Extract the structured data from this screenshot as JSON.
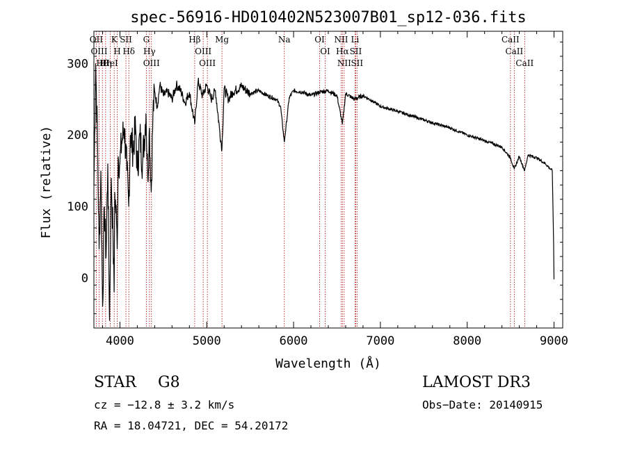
{
  "chart_data": {
    "type": "line",
    "title": "spec-56916-HD010402N523007B01_sp12-036.fits",
    "xlabel": "Wavelength (Å)",
    "ylabel": "Flux (relative)",
    "xlim": [
      3700,
      9100
    ],
    "ylim": [
      -70,
      345
    ],
    "xticks": [
      4000,
      5000,
      6000,
      7000,
      8000,
      9000
    ],
    "yticks": [
      0,
      100,
      200,
      300
    ],
    "xtick_labels": [
      "4000",
      "5000",
      "6000",
      "7000",
      "8000",
      "9000"
    ],
    "ytick_labels": [
      "0",
      "100",
      "200",
      "300"
    ],
    "grid": false,
    "series": [
      {
        "name": "spectrum",
        "x": [
          3700,
          3720,
          3740,
          3760,
          3780,
          3800,
          3820,
          3840,
          3860,
          3880,
          3900,
          3920,
          3933,
          3940,
          3960,
          3968,
          3980,
          4000,
          4020,
          4050,
          4080,
          4101,
          4120,
          4150,
          4180,
          4200,
          4230,
          4260,
          4300,
          4320,
          4340,
          4360,
          4380,
          4400,
          4430,
          4460,
          4500,
          4550,
          4600,
          4650,
          4700,
          4750,
          4800,
          4861,
          4900,
          4950,
          5000,
          5050,
          5100,
          5150,
          5175,
          5200,
          5250,
          5300,
          5400,
          5500,
          5600,
          5700,
          5800,
          5850,
          5893,
          5950,
          6000,
          6100,
          6200,
          6300,
          6400,
          6500,
          6563,
          6600,
          6700,
          6800,
          6900,
          7000,
          7200,
          7400,
          7600,
          7800,
          8000,
          8200,
          8400,
          8498,
          8542,
          8600,
          8662,
          8700,
          8800,
          8900,
          8980,
          8995,
          9000
        ],
        "y": [
          130,
          300,
          200,
          40,
          150,
          -40,
          100,
          30,
          160,
          -60,
          140,
          60,
          -20,
          120,
          80,
          40,
          170,
          160,
          190,
          210,
          150,
          100,
          200,
          180,
          210,
          150,
          200,
          160,
          230,
          140,
          210,
          120,
          230,
          260,
          240,
          270,
          255,
          260,
          250,
          270,
          262,
          245,
          260,
          215,
          275,
          255,
          270,
          250,
          262,
          205,
          180,
          265,
          250,
          260,
          268,
          258,
          262,
          255,
          250,
          240,
          190,
          252,
          262,
          260,
          255,
          260,
          262,
          255,
          215,
          258,
          250,
          255,
          248,
          240,
          233,
          225,
          217,
          210,
          200,
          192,
          183,
          168,
          152,
          170,
          150,
          172,
          168,
          160,
          150,
          50,
          -2
        ],
        "color": "#000000"
      }
    ],
    "lines": [
      {
        "label": "OII",
        "x": 3727
      },
      {
        "label": "OIII",
        "x": 3760
      },
      {
        "label": "Hθ",
        "x": 3798
      },
      {
        "label": "Hη",
        "x": 3835
      },
      {
        "label": "HeI",
        "x": 3889
      },
      {
        "label": "K",
        "x": 3934
      },
      {
        "label": "H",
        "x": 3968
      },
      {
        "label": "SII",
        "x": 4069
      },
      {
        "label": "Hδ",
        "x": 4102
      },
      {
        "label": "G",
        "x": 4304
      },
      {
        "label": "Hγ",
        "x": 4340
      },
      {
        "label": "OIII",
        "x": 4363
      },
      {
        "label": "Hβ",
        "x": 4861
      },
      {
        "label": "OIII",
        "x": 4959
      },
      {
        "label": "OIII",
        "x": 5007
      },
      {
        "label": "Mg",
        "x": 5175
      },
      {
        "label": "Na",
        "x": 5893
      },
      {
        "label": "OI",
        "x": 6300
      },
      {
        "label": "OI",
        "x": 6364
      },
      {
        "label": "NII",
        "x": 6548
      },
      {
        "label": "Hα",
        "x": 6563
      },
      {
        "label": "NII",
        "x": 6583
      },
      {
        "label": "Li",
        "x": 6708
      },
      {
        "label": "SII",
        "x": 6716
      },
      {
        "label": "SII",
        "x": 6731
      },
      {
        "label": "CaII",
        "x": 8498
      },
      {
        "label": "CaII",
        "x": 8542
      },
      {
        "label": "CaII",
        "x": 8662
      }
    ]
  },
  "info": {
    "class_label": "STAR",
    "subclass": "G8",
    "survey": "LAMOST DR3",
    "velocity": "cz = −12.8 ± 3.2 km/s",
    "obs_date": "Obs−Date: 20140915",
    "coords": "RA =  18.04721, DEC =  54.20172"
  }
}
